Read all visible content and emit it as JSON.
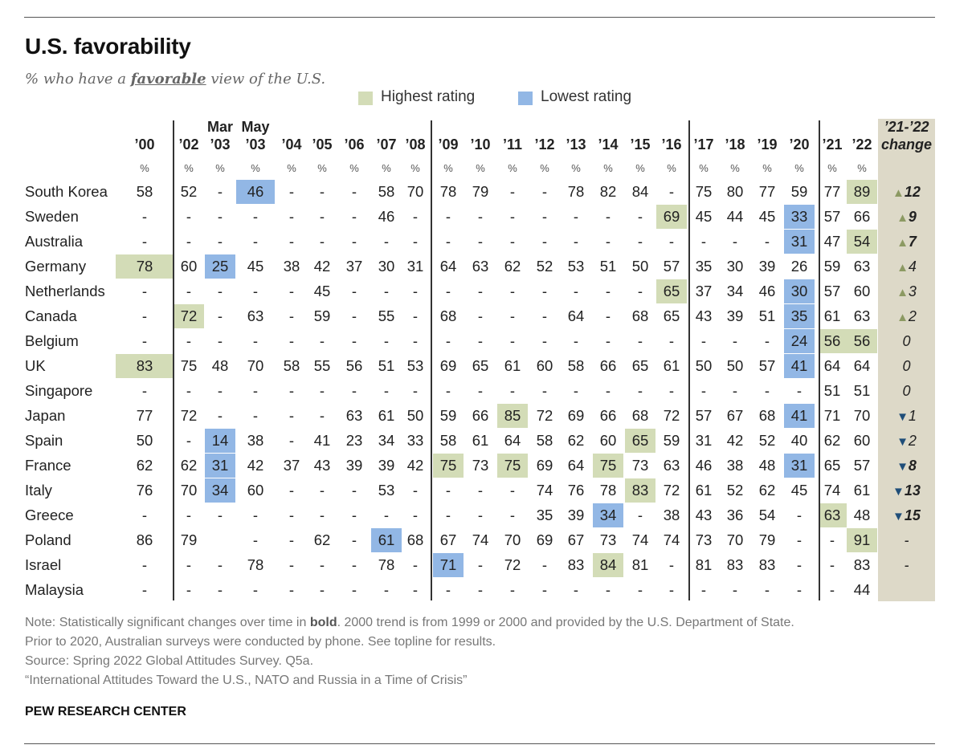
{
  "title": "U.S. favorability",
  "subtitle": {
    "pre": "% who have a ",
    "emph": "favorable",
    "post": " view of the U.S."
  },
  "legend": {
    "highest": {
      "label": "Highest rating",
      "color": "#d3dcb7"
    },
    "lowest": {
      "label": "Lowest rating",
      "color": "#92b7e5"
    }
  },
  "chart_data": {
    "type": "table",
    "column_group_labels": [
      "Mar",
      "May"
    ],
    "columns": [
      "'00",
      "'02",
      "'03",
      "'03",
      "'04",
      "'05",
      "'06",
      "'07",
      "'08",
      "'09",
      "'10",
      "'11",
      "'12",
      "'13",
      "'14",
      "'15",
      "'16",
      "'17",
      "'18",
      "'19",
      "'20",
      "'21",
      "'22"
    ],
    "unit_label": "%",
    "change_header": [
      "'21-'22",
      "change"
    ],
    "rows": [
      {
        "country": "South Korea",
        "values": [
          "58",
          "52",
          "-",
          "46",
          "-",
          "-",
          "-",
          "58",
          "70",
          "78",
          "79",
          "-",
          "-",
          "78",
          "82",
          "84",
          "-",
          "75",
          "80",
          "77",
          "59",
          "77",
          "89"
        ],
        "highest": [
          22
        ],
        "lowest": [
          3
        ],
        "change": "12",
        "direction": "up",
        "significant": true
      },
      {
        "country": "Sweden",
        "values": [
          "-",
          "-",
          "-",
          "-",
          "-",
          "-",
          "-",
          "46",
          "-",
          "-",
          "-",
          "-",
          "-",
          "-",
          "-",
          "-",
          "69",
          "45",
          "44",
          "45",
          "33",
          "57",
          "66"
        ],
        "highest": [
          16
        ],
        "lowest": [
          20
        ],
        "change": "9",
        "direction": "up",
        "significant": true
      },
      {
        "country": "Australia",
        "values": [
          "-",
          "-",
          "-",
          "-",
          "-",
          "-",
          "-",
          "-",
          "-",
          "-",
          "-",
          "-",
          "-",
          "-",
          "-",
          "-",
          "-",
          "-",
          "-",
          "-",
          "31",
          "47",
          "54"
        ],
        "highest": [
          22
        ],
        "lowest": [
          20
        ],
        "change": "7",
        "direction": "up",
        "significant": true
      },
      {
        "country": "Germany",
        "values": [
          "78",
          "60",
          "25",
          "45",
          "38",
          "42",
          "37",
          "30",
          "31",
          "64",
          "63",
          "62",
          "52",
          "53",
          "51",
          "50",
          "57",
          "35",
          "30",
          "39",
          "26",
          "59",
          "63"
        ],
        "highest": [
          0
        ],
        "lowest": [
          2
        ],
        "change": "4",
        "direction": "up",
        "significant": false
      },
      {
        "country": "Netherlands",
        "values": [
          "-",
          "-",
          "-",
          "-",
          "-",
          "45",
          "-",
          "-",
          "-",
          "-",
          "-",
          "-",
          "-",
          "-",
          "-",
          "-",
          "65",
          "37",
          "34",
          "46",
          "30",
          "57",
          "60"
        ],
        "highest": [
          16
        ],
        "lowest": [
          20
        ],
        "change": "3",
        "direction": "up",
        "significant": false
      },
      {
        "country": "Canada",
        "values": [
          "-",
          "72",
          "-",
          "63",
          "-",
          "59",
          "-",
          "55",
          "-",
          "68",
          "-",
          "-",
          "-",
          "64",
          "-",
          "68",
          "65",
          "43",
          "39",
          "51",
          "35",
          "61",
          "63"
        ],
        "highest": [
          1
        ],
        "lowest": [
          20
        ],
        "change": "2",
        "direction": "up",
        "significant": false
      },
      {
        "country": "Belgium",
        "values": [
          "-",
          "-",
          "-",
          "-",
          "-",
          "-",
          "-",
          "-",
          "-",
          "-",
          "-",
          "-",
          "-",
          "-",
          "-",
          "-",
          "-",
          "-",
          "-",
          "-",
          "24",
          "56",
          "56"
        ],
        "highest": [
          21,
          22
        ],
        "lowest": [
          20
        ],
        "change": "0",
        "direction": "none",
        "significant": false
      },
      {
        "country": "UK",
        "values": [
          "83",
          "75",
          "48",
          "70",
          "58",
          "55",
          "56",
          "51",
          "53",
          "69",
          "65",
          "61",
          "60",
          "58",
          "66",
          "65",
          "61",
          "50",
          "50",
          "57",
          "41",
          "64",
          "64"
        ],
        "highest": [
          0
        ],
        "lowest": [
          20
        ],
        "change": "0",
        "direction": "none",
        "significant": false
      },
      {
        "country": "Singapore",
        "values": [
          "-",
          "-",
          "-",
          "-",
          "-",
          "-",
          "-",
          "-",
          "-",
          "-",
          "-",
          "-",
          "-",
          "-",
          "-",
          "-",
          "-",
          "-",
          "-",
          "-",
          "-",
          "51",
          "51"
        ],
        "highest": [],
        "lowest": [],
        "change": "0",
        "direction": "none",
        "significant": false
      },
      {
        "country": "Japan",
        "values": [
          "77",
          "72",
          "-",
          "-",
          "-",
          "-",
          "63",
          "61",
          "50",
          "59",
          "66",
          "85",
          "72",
          "69",
          "66",
          "68",
          "72",
          "57",
          "67",
          "68",
          "41",
          "71",
          "70"
        ],
        "highest": [
          11
        ],
        "lowest": [
          20
        ],
        "change": "1",
        "direction": "down",
        "significant": false
      },
      {
        "country": "Spain",
        "values": [
          "50",
          "-",
          "14",
          "38",
          "-",
          "41",
          "23",
          "34",
          "33",
          "58",
          "61",
          "64",
          "58",
          "62",
          "60",
          "65",
          "59",
          "31",
          "42",
          "52",
          "40",
          "62",
          "60"
        ],
        "highest": [
          15
        ],
        "lowest": [
          2
        ],
        "change": "2",
        "direction": "down",
        "significant": false
      },
      {
        "country": "France",
        "values": [
          "62",
          "62",
          "31",
          "42",
          "37",
          "43",
          "39",
          "39",
          "42",
          "75",
          "73",
          "75",
          "69",
          "64",
          "75",
          "73",
          "63",
          "46",
          "38",
          "48",
          "31",
          "65",
          "57"
        ],
        "highest": [
          9,
          11,
          14
        ],
        "lowest": [
          2,
          20
        ],
        "change": "8",
        "direction": "down",
        "significant": true
      },
      {
        "country": "Italy",
        "values": [
          "76",
          "70",
          "34",
          "60",
          "-",
          "-",
          "-",
          "53",
          "-",
          "-",
          "-",
          "-",
          "74",
          "76",
          "78",
          "83",
          "72",
          "61",
          "52",
          "62",
          "45",
          "74",
          "61"
        ],
        "highest": [
          15
        ],
        "lowest": [
          2
        ],
        "change": "13",
        "direction": "down",
        "significant": true
      },
      {
        "country": "Greece",
        "values": [
          "-",
          "-",
          "-",
          "-",
          "-",
          "-",
          "-",
          "-",
          "-",
          "-",
          "-",
          "-",
          "35",
          "39",
          "34",
          "-",
          "38",
          "43",
          "36",
          "54",
          "-",
          "63",
          "48"
        ],
        "highest": [
          21
        ],
        "lowest": [
          14
        ],
        "change": "15",
        "direction": "down",
        "significant": true
      },
      {
        "country": "Poland",
        "values": [
          "86",
          "79",
          "",
          "-",
          "-",
          "62",
          "-",
          "61",
          "68",
          "67",
          "74",
          "70",
          "69",
          "67",
          "73",
          "74",
          "74",
          "73",
          "70",
          "79",
          "-",
          "-",
          "91"
        ],
        "highest": [
          22
        ],
        "lowest": [
          7
        ],
        "change": "-",
        "direction": "none",
        "significant": false
      },
      {
        "country": "Israel",
        "values": [
          "-",
          "-",
          "-",
          "78",
          "-",
          "-",
          "-",
          "78",
          "-",
          "71",
          "-",
          "72",
          "-",
          "83",
          "84",
          "81",
          "-",
          "81",
          "83",
          "83",
          "-",
          "-",
          "83"
        ],
        "highest": [
          14
        ],
        "lowest": [
          9
        ],
        "change": "-",
        "direction": "none",
        "significant": false
      },
      {
        "country": "Malaysia",
        "values": [
          "-",
          "-",
          "-",
          "-",
          "-",
          "-",
          "-",
          "-",
          "-",
          "-",
          "-",
          "-",
          "-",
          "-",
          "-",
          "-",
          "-",
          "-",
          "-",
          "-",
          "-",
          "-",
          "44"
        ],
        "highest": [],
        "lowest": [],
        "change": "",
        "direction": "none",
        "significant": false
      }
    ]
  },
  "notes": {
    "line1_pre": "Note: Statistically significant changes over time in ",
    "line1_bold": "bold",
    "line1_post": ". 2000 trend is from 1999 or 2000 and provided by the U.S. Department of State.",
    "line2": "Prior to 2020, Australian surveys were conducted by phone. See topline for results.",
    "line3": "Source: Spring 2022 Global Attitudes Survey. Q5a.",
    "line4": "“International Attitudes Toward the U.S., NATO and Russia in a Time of Crisis”"
  },
  "brand": "PEW RESEARCH CENTER"
}
